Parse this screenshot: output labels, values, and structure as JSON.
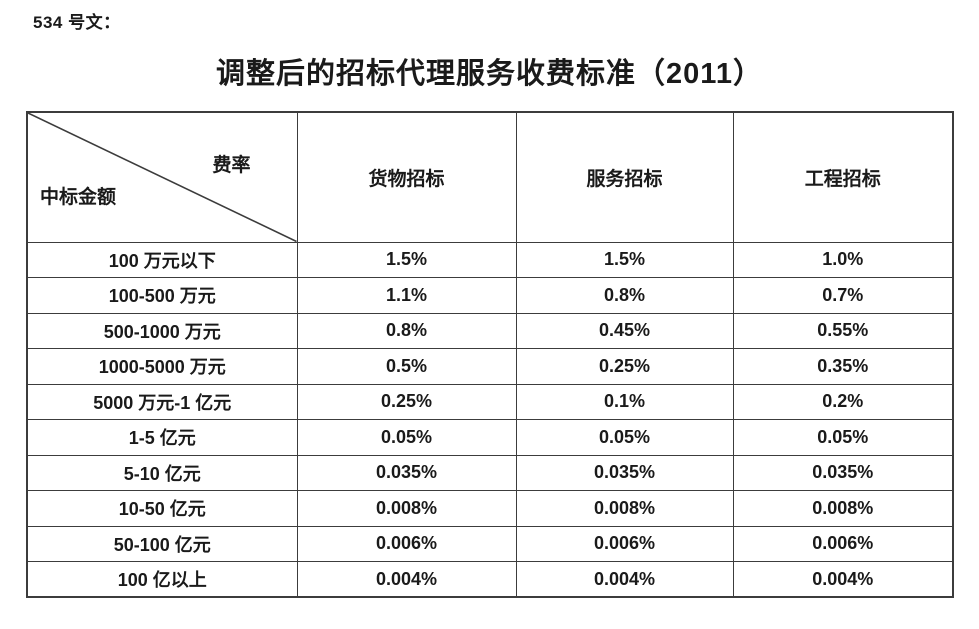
{
  "doc": {
    "doc_number": "534 号文：",
    "title": "调整后的招标代理服务收费标准（2011）"
  },
  "table": {
    "corner": {
      "top_right_label": "费率",
      "bottom_left_label": "中标金额"
    },
    "columns": [
      "货物招标",
      "服务招标",
      "工程招标"
    ],
    "rows": [
      {
        "label": "100 万元以下",
        "values": [
          "1.5%",
          "1.5%",
          "1.0%"
        ]
      },
      {
        "label": "100-500 万元",
        "values": [
          "1.1%",
          "0.8%",
          "0.7%"
        ]
      },
      {
        "label": "500-1000 万元",
        "values": [
          "0.8%",
          "0.45%",
          "0.55%"
        ]
      },
      {
        "label": "1000-5000 万元",
        "values": [
          "0.5%",
          "0.25%",
          "0.35%"
        ]
      },
      {
        "label": "5000 万元-1 亿元",
        "values": [
          "0.25%",
          "0.1%",
          "0.2%"
        ]
      },
      {
        "label": "1-5 亿元",
        "values": [
          "0.05%",
          "0.05%",
          "0.05%"
        ]
      },
      {
        "label": "5-10 亿元",
        "values": [
          "0.035%",
          "0.035%",
          "0.035%"
        ]
      },
      {
        "label": "10-50 亿元",
        "values": [
          "0.008%",
          "0.008%",
          "0.008%"
        ]
      },
      {
        "label": "50-100 亿元",
        "values": [
          "0.006%",
          "0.006%",
          "0.006%"
        ]
      },
      {
        "label": "100 亿以上",
        "values": [
          "0.004%",
          "0.004%",
          "0.004%"
        ]
      }
    ],
    "colors": {
      "border": "#3c3c3c",
      "text": "#1a1a1a",
      "background": "#ffffff"
    }
  }
}
